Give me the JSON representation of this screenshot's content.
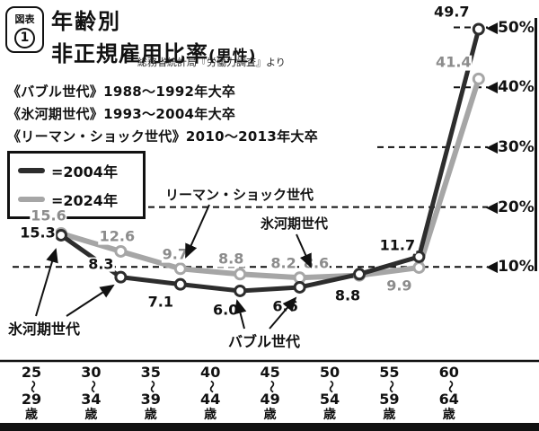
{
  "figure_badge": {
    "label": "図表",
    "number": "1"
  },
  "title": {
    "line1": "年齢別",
    "line2": "非正規雇用比率",
    "suffix": "(男性)"
  },
  "source": "総務省統計局『労働力調査』より",
  "definitions": [
    {
      "text": "《バブル世代》1988〜1992年大卒"
    },
    {
      "text": "《氷河期世代》1993〜2004年大卒"
    },
    {
      "text": "《リーマン・ショック世代》2010〜2013年大卒"
    }
  ],
  "legend": {
    "items": [
      {
        "label": "=2004年",
        "color": "#2d2d2d"
      },
      {
        "label": "=2024年",
        "color": "#a6a6a6"
      }
    ]
  },
  "annotations": {
    "lehman_label": "リーマン・ショック世代",
    "hyogaki_upper_label": "氷河期世代",
    "hyogaki_lower_label": "氷河期世代",
    "bubble_label": "バブル世代"
  },
  "chart_data": {
    "type": "line",
    "categories": [
      "25〜29歳",
      "30〜34歳",
      "35〜39歳",
      "40〜44歳",
      "45〜49歳",
      "50〜54歳",
      "55〜59歳",
      "60〜64歳"
    ],
    "series": [
      {
        "name": "2004年",
        "color": "#2d2d2d",
        "label_color": "#111111",
        "values": [
          15.3,
          8.3,
          7.1,
          6.0,
          6.6,
          8.8,
          11.7,
          49.7
        ]
      },
      {
        "name": "2024年",
        "color": "#a6a6a6",
        "label_color": "#8c8c8c",
        "values": [
          15.6,
          12.6,
          9.7,
          8.8,
          8.2,
          8.6,
          9.9,
          41.4
        ]
      }
    ],
    "y_ticks": [
      50,
      40,
      30,
      20,
      10
    ],
    "y_tick_marker": "◀",
    "y_tick_suffix": "%",
    "ylim": [
      0,
      55
    ],
    "grid": "dashed",
    "legend_position": "left"
  }
}
